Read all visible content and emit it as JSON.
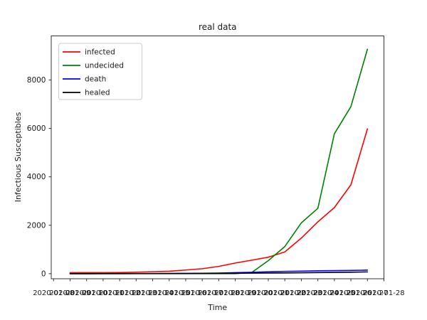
{
  "figure": {
    "title": "real data",
    "xlabel": "Time",
    "ylabel": "Infectious Susceptibles"
  },
  "legend": {
    "position": "upper left",
    "entries": [
      {
        "label": "infected",
        "color": "#ff0000"
      },
      {
        "label": "undecided",
        "color": "#008000"
      },
      {
        "label": "death",
        "color": "#0000ff"
      },
      {
        "label": "healed",
        "color": "#000000"
      }
    ]
  },
  "chart_data": {
    "type": "line",
    "title": "real data",
    "xlabel": "Time",
    "ylabel": "Infectious Susceptibles",
    "x": [
      "2020-01-09",
      "2020-01-10",
      "2020-01-11",
      "2020-01-12",
      "2020-01-13",
      "2020-01-14",
      "2020-01-15",
      "2020-01-16",
      "2020-01-17",
      "2020-01-18",
      "2020-01-19",
      "2020-01-20",
      "2020-01-21",
      "2020-01-22",
      "2020-01-23",
      "2020-01-24",
      "2020-01-25",
      "2020-01-26",
      "2020-01-27"
    ],
    "x_tick_labels": [
      "2020-01-08",
      "2020-01-09",
      "2020-01-10",
      "2020-01-11",
      "2020-01-12",
      "2020-01-13",
      "2020-01-14",
      "2020-01-15",
      "2020-01-16",
      "2020-01-17",
      "2020-01-18",
      "2020-01-19",
      "2020-01-20",
      "2020-01-21",
      "2020-01-22",
      "2020-01-23",
      "2020-01-24",
      "2020-01-25",
      "2020-01-26",
      "2020-01-27",
      "2020-01-28"
    ],
    "y_ticks": [
      0,
      2000,
      4000,
      6000,
      8000
    ],
    "ylim": [
      -210,
      9820
    ],
    "grid": false,
    "legend_position": "upper left",
    "series": [
      {
        "name": "infected",
        "color": "#ff0000",
        "values": [
          41,
          41,
          41,
          45,
          62,
          80,
          100,
          150,
          205,
          300,
          440,
          557,
          680,
          900,
          1470,
          2140,
          2730,
          3670,
          5980
        ]
      },
      {
        "name": "undecided",
        "color": "#008000",
        "values": [
          0,
          0,
          0,
          0,
          0,
          0,
          0,
          0,
          0,
          0,
          0,
          50,
          540,
          1120,
          2100,
          2700,
          5780,
          6900,
          9270
        ]
      },
      {
        "name": "death",
        "color": "#0000ff",
        "values": [
          1,
          1,
          1,
          2,
          3,
          4,
          6,
          9,
          17,
          25,
          41,
          56,
          80,
          95,
          106,
          118,
          126,
          133,
          147
        ]
      },
      {
        "name": "healed",
        "color": "#000000",
        "values": [
          2,
          2,
          3,
          4,
          5,
          6,
          8,
          10,
          12,
          15,
          18,
          22,
          26,
          31,
          37,
          44,
          52,
          61,
          73
        ]
      }
    ]
  }
}
